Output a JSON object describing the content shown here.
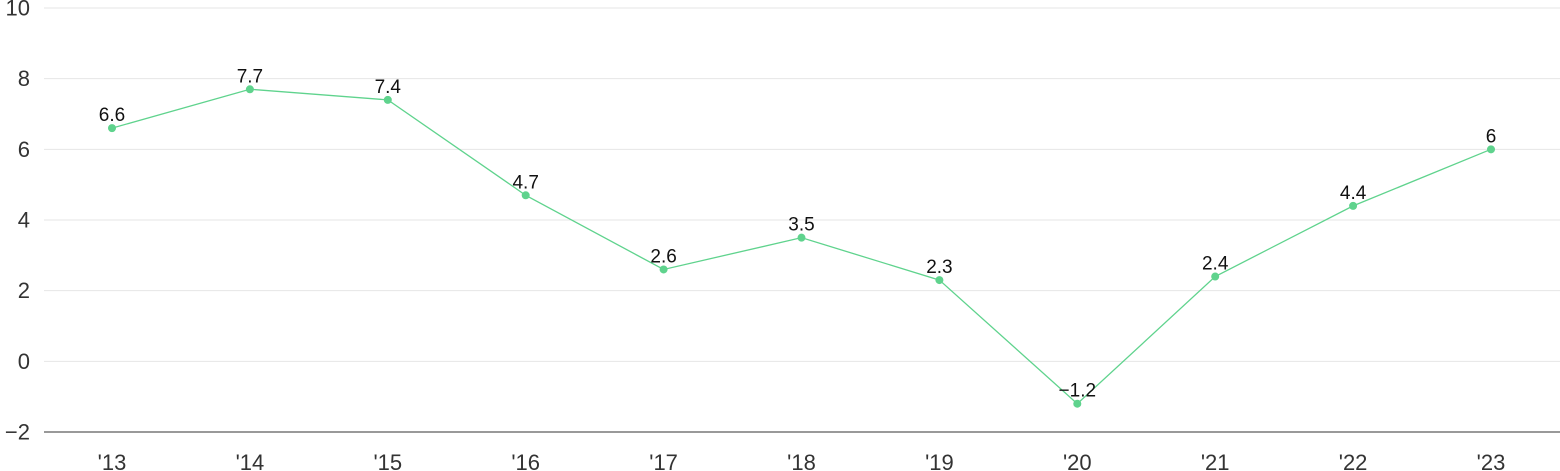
{
  "chart_data": {
    "type": "line",
    "categories": [
      "'13",
      "'14",
      "'15",
      "'16",
      "'17",
      "'18",
      "'19",
      "'20",
      "'21",
      "'22",
      "'23"
    ],
    "series": [
      {
        "values": [
          6.6,
          7.7,
          7.4,
          4.7,
          2.6,
          3.5,
          2.3,
          -1.2,
          2.4,
          4.4,
          6
        ],
        "labels": [
          "6.6",
          "7.7",
          "7.4",
          "4.7",
          "2.6",
          "3.5",
          "2.3",
          "−1.2",
          "2.4",
          "4.4",
          "6"
        ],
        "color": "#5fd38d"
      }
    ],
    "y_ticks": [
      "10",
      "8",
      "6",
      "4",
      "2",
      "0",
      "−2"
    ],
    "y_tick_values": [
      10,
      8,
      6,
      4,
      2,
      0,
      -2
    ],
    "ylim": [
      -2,
      10
    ],
    "grid": true,
    "title": "",
    "xlabel": "",
    "ylabel": ""
  }
}
